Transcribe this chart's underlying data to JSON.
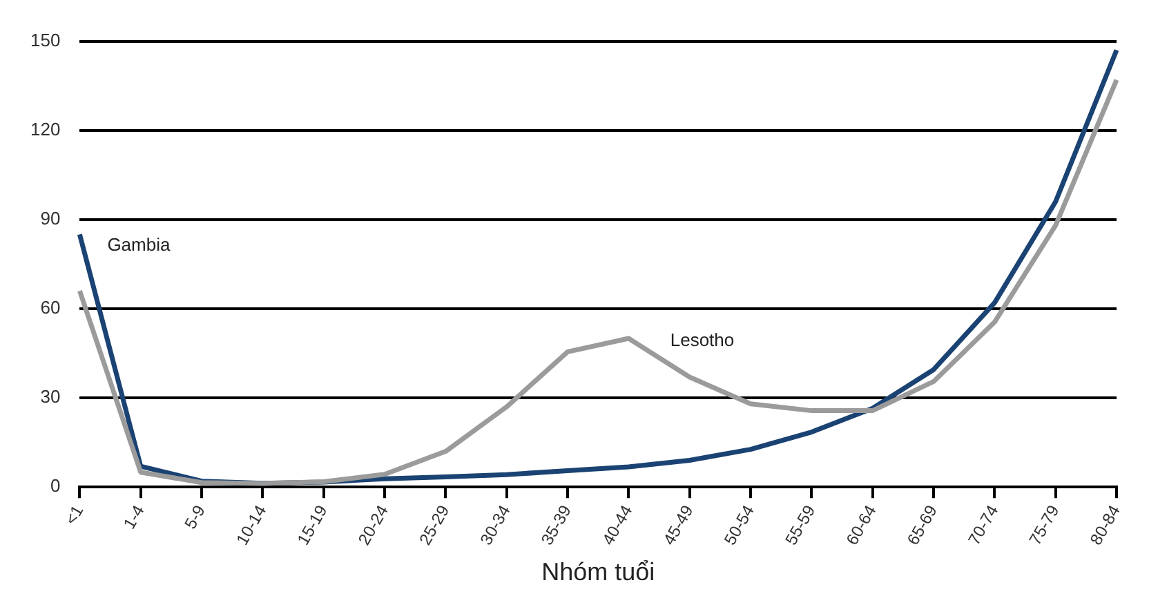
{
  "chart_data": {
    "type": "line",
    "xlabel": "Nhóm tuổi",
    "categories": [
      "<1",
      "1-4",
      "5-9",
      "10-14",
      "15-19",
      "20-24",
      "25-29",
      "30-34",
      "35-39",
      "40-44",
      "45-49",
      "50-54",
      "55-59",
      "60-64",
      "65-69",
      "70-74",
      "75-79",
      "80-84"
    ],
    "series": [
      {
        "name": "Lesotho",
        "color": "#9b9b9b",
        "values": [
          66,
          5,
          1.5,
          1.2,
          1.8,
          4.3,
          12,
          27,
          45.5,
          50,
          37,
          28,
          25.7,
          25.7,
          35.5,
          55.5,
          88,
          137
        ]
      },
      {
        "name": "Gambia",
        "color": "#1a4373",
        "values": [
          85,
          7,
          2,
          1.3,
          1.7,
          2.8,
          3.4,
          4.2,
          5.5,
          6.8,
          9,
          12.7,
          18.5,
          26.5,
          39.5,
          62,
          96,
          147
        ]
      }
    ],
    "ylim": [
      0,
      150
    ],
    "yticks": [
      0,
      30,
      60,
      90,
      120,
      150
    ],
    "grid": "y",
    "legend": false,
    "marker": "none",
    "line_style": "solid"
  }
}
